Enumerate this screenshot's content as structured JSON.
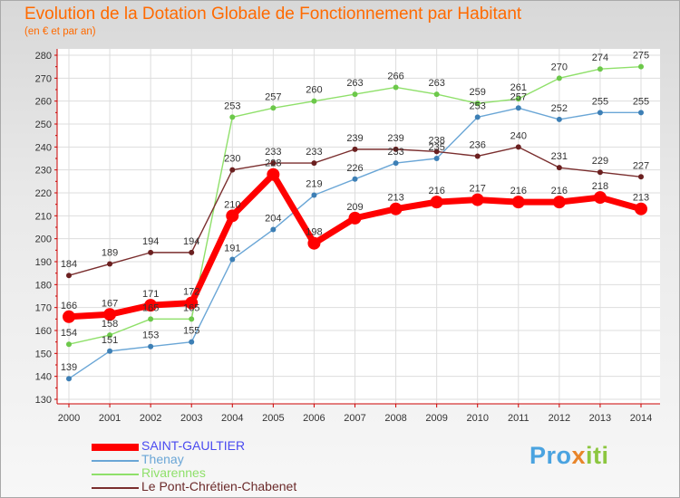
{
  "chart_data": {
    "type": "line",
    "title": "Evolution de la Dotation Globale de Fonctionnement par Habitant",
    "subtitle": "(en € et par an)",
    "xlabel": "",
    "ylabel": "",
    "ylim": [
      130,
      280
    ],
    "ytick_step": 10,
    "grid": true,
    "legend_position": "bottom-left",
    "categories": [
      "2000",
      "2001",
      "2002",
      "2003",
      "2004",
      "2005",
      "2006",
      "2007",
      "2008",
      "2009",
      "2010",
      "2011",
      "2012",
      "2013",
      "2014"
    ],
    "series": [
      {
        "name": "SAINT-GAULTIER",
        "color": "#ff0000",
        "marker_color": "#ff0000",
        "legend_text_color": "#4a4af0",
        "emphasis": true,
        "values": [
          166,
          167,
          171,
          172,
          210,
          228,
          198,
          209,
          213,
          216,
          217,
          216,
          216,
          218,
          213
        ],
        "labels": [
          "166",
          "167",
          "171",
          "172",
          "210",
          "228",
          "198",
          "209",
          "213",
          "216",
          "217",
          "216",
          "216",
          "218",
          "213"
        ]
      },
      {
        "name": "Thenay",
        "color": "#6aa6d6",
        "marker_color": "#3d7fb5",
        "legend_text_color": "#6aa6d6",
        "values": [
          139,
          151,
          153,
          155,
          191,
          204,
          219,
          226,
          233,
          235,
          253,
          257,
          252,
          255,
          255
        ],
        "labels": [
          "139",
          "151",
          "153",
          "155",
          "191",
          "204",
          "219",
          "226",
          "233",
          "235",
          "253",
          "257",
          "252",
          "255",
          "255"
        ]
      },
      {
        "name": "Rivarennes",
        "color": "#8fe06a",
        "marker_color": "#6cc84a",
        "legend_text_color": "#8fe06a",
        "values": [
          154,
          158,
          165,
          165,
          253,
          257,
          260,
          263,
          266,
          263,
          259,
          261,
          270,
          274,
          275
        ],
        "labels": [
          "154",
          "158",
          "165",
          "165",
          "253",
          "257",
          "260",
          "263",
          "266",
          "263",
          "259",
          "261",
          "270",
          "274",
          "275"
        ]
      },
      {
        "name": "Le Pont-Chrétien-Chabenet",
        "color": "#7a2e2e",
        "marker_color": "#6b2020",
        "legend_text_color": "#6b2a2a",
        "values": [
          184,
          189,
          194,
          194,
          230,
          233,
          233,
          239,
          239,
          238,
          236,
          240,
          231,
          229,
          227
        ],
        "labels": [
          "184",
          "189",
          "194",
          "194",
          "230",
          "233",
          "233",
          "239",
          "239",
          "238",
          "236",
          "240",
          "231",
          "229",
          "227"
        ]
      }
    ]
  },
  "logo": {
    "text_a": "Pro",
    "text_b": "x",
    "text_c": "iti"
  }
}
